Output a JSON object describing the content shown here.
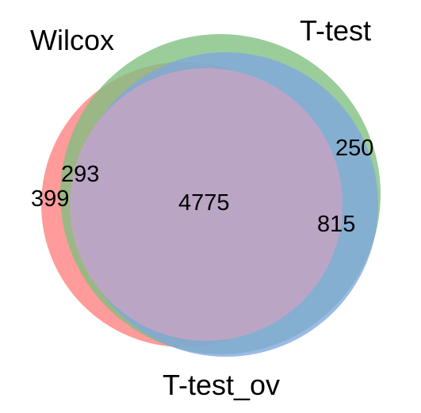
{
  "sets": [
    {
      "name": "Wilcox",
      "color": "#ff7f7f"
    },
    {
      "name": "T-test",
      "color": "#7fbf7f"
    },
    {
      "name": "T-test_ov",
      "color": "#7fa7df"
    }
  ],
  "regions": {
    "all_three": "4775",
    "t_test_only": "250",
    "t_test_and_t_test_ov": "815",
    "wilcox_and_t_test": "293",
    "wilcox_only": "399"
  }
}
